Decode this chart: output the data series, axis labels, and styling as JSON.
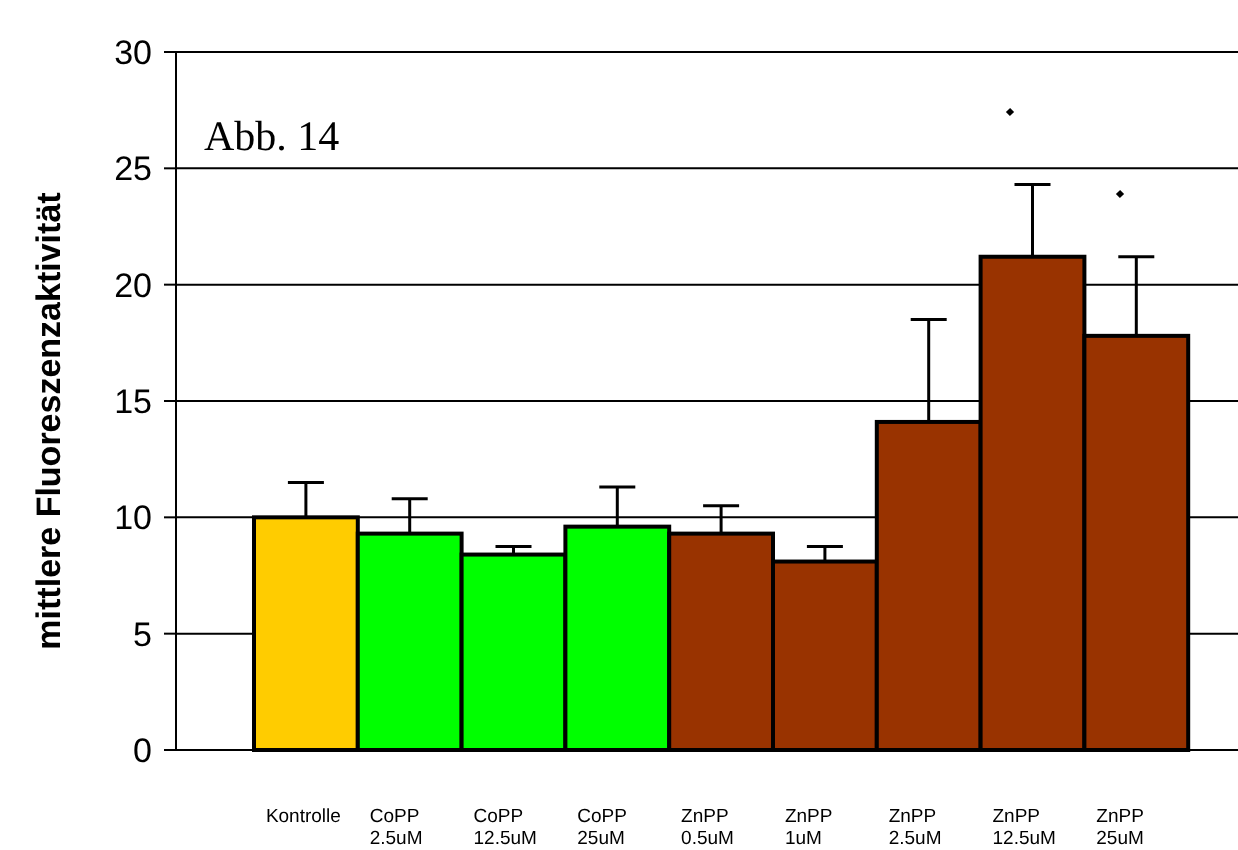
{
  "chart_data": {
    "type": "bar",
    "ylabel": "mittlere Fluoreszenzaktivität",
    "annotations": [
      "Abb. 14"
    ],
    "categories": [
      "Kontrolle",
      "CoPP\n2.5uM",
      "CoPP\n12.5uM",
      "CoPP\n25uM",
      "ZnPP\n0.5uM",
      "ZnPP\n1uM",
      "ZnPP\n2.5uM",
      "ZnPP\n12.5uM",
      "ZnPP\n25uM"
    ],
    "values": [
      10,
      9.3,
      8.4,
      9.6,
      9.3,
      8.1,
      14.1,
      21.2,
      17.8
    ],
    "colors": [
      "#ffcc00",
      "#00ff00",
      "#00ff00",
      "#00ff00",
      "#993300",
      "#993300",
      "#993300",
      "#993300",
      "#993300"
    ],
    "errors": [
      [
        10,
        11.5
      ],
      [
        9.3,
        10.8
      ],
      [
        8.4,
        8.75
      ],
      [
        9.6,
        11.3
      ],
      [
        9.3,
        10.5
      ],
      [
        8.1,
        8.75
      ],
      [
        14.1,
        18.5
      ],
      [
        21.2,
        24.3
      ],
      [
        17.8,
        21.2
      ]
    ],
    "ylim": [
      0,
      30
    ],
    "yticks": [
      0,
      5,
      10,
      15,
      20,
      25,
      30
    ],
    "grid": "y"
  }
}
